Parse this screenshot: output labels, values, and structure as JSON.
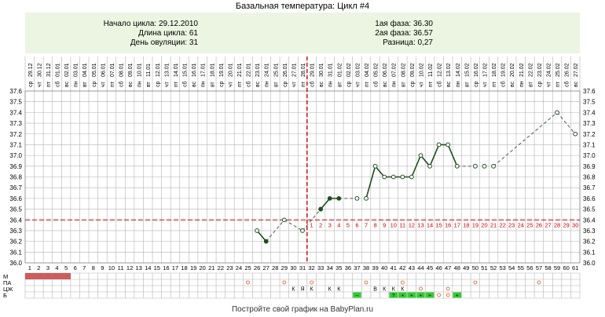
{
  "page": {
    "title": "Базальная температура: Цикл #4",
    "footer": "Постройте свой график на BabyPlan.ru"
  },
  "info": {
    "cycle_start": "Начало цикла: 29.12.2010",
    "cycle_length": "Длина цикла: 61",
    "ovulation_day": "День овуляции: 31",
    "phase1": "1ая фаза: 36.30",
    "phase2": "2ая фаза: 36.57",
    "difference": "Разница: 0,27"
  },
  "colors": {
    "grid": "#b4b4b4",
    "coverline": "#cc0000",
    "ovulation": "#cc0000",
    "series_solid": "#1f4d1f",
    "series_dashed": "#555555",
    "menses": "#cd5c5c",
    "mucus_green": "#33cc33",
    "info_bg": "#ebf5e1",
    "dot_orange": "#e05a2a"
  },
  "chart_data": {
    "type": "line",
    "title": "Базальная температура: Цикл #4",
    "days": [
      1,
      2,
      3,
      4,
      5,
      6,
      7,
      8,
      9,
      10,
      11,
      12,
      13,
      14,
      15,
      16,
      17,
      18,
      19,
      20,
      21,
      22,
      23,
      24,
      25,
      26,
      27,
      28,
      29,
      30,
      31,
      32,
      33,
      34,
      35,
      36,
      37,
      38,
      39,
      40,
      41,
      42,
      43,
      44,
      45,
      46,
      47,
      48,
      49,
      50,
      51,
      52,
      53,
      54,
      55,
      56,
      57,
      58,
      59,
      60,
      61
    ],
    "weekdays": [
      "ср",
      "чт",
      "пт",
      "сб",
      "вс",
      "пн",
      "вт",
      "ср",
      "чт",
      "пт",
      "сб",
      "вс",
      "пн",
      "вт",
      "ср",
      "чт",
      "пт",
      "сб",
      "вс",
      "пн",
      "вт",
      "ср",
      "чт",
      "пт",
      "сб",
      "вс",
      "пн",
      "вт",
      "ср",
      "чт",
      "пт",
      "сб",
      "вс",
      "пн",
      "вт",
      "ср",
      "чт",
      "пт",
      "сб",
      "вс",
      "пн",
      "вт",
      "ср",
      "чт",
      "пт",
      "сб",
      "вс",
      "пн",
      "вт",
      "ср",
      "чт",
      "пт",
      "сб",
      "вс",
      "пн",
      "вт",
      "ср",
      "чт",
      "пт",
      "сб",
      "вс"
    ],
    "dates": [
      "29.12",
      "30.12",
      "31.12",
      "01.01",
      "02.01",
      "03.01",
      "04.01",
      "05.01",
      "06.01",
      "07.01",
      "08.01",
      "09.01",
      "10.01",
      "11.01",
      "12.01",
      "13.01",
      "14.01",
      "15.01",
      "16.01",
      "17.01",
      "18.01",
      "19.01",
      "20.01",
      "21.01",
      "22.01",
      "23.01",
      "24.01",
      "25.01",
      "26.01",
      "27.01",
      "28.01",
      "29.01",
      "30.01",
      "31.01",
      "01.02",
      "02.02",
      "03.02",
      "04.02",
      "05.02",
      "06.02",
      "07.02",
      "08.02",
      "09.02",
      "10.02",
      "11.02",
      "12.02",
      "13.02",
      "14.02",
      "15.02",
      "16.02",
      "17.02",
      "18.02",
      "19.02",
      "20.02",
      "21.02",
      "22.02",
      "23.02",
      "24.02",
      "25.02",
      "26.02",
      "27.02"
    ],
    "ylim": [
      36.0,
      37.6
    ],
    "yticks": [
      36.0,
      36.1,
      36.2,
      36.3,
      36.4,
      36.5,
      36.6,
      36.7,
      36.8,
      36.9,
      37.0,
      37.1,
      37.2,
      37.3,
      37.4,
      37.5,
      37.6
    ],
    "temperatures": [
      null,
      null,
      null,
      null,
      null,
      null,
      null,
      null,
      null,
      null,
      null,
      null,
      null,
      null,
      null,
      null,
      null,
      null,
      null,
      null,
      null,
      null,
      null,
      null,
      null,
      36.3,
      36.2,
      null,
      36.4,
      null,
      36.3,
      null,
      36.5,
      36.6,
      36.6,
      null,
      36.6,
      36.6,
      36.9,
      36.8,
      36.8,
      36.8,
      36.8,
      37.0,
      36.9,
      37.1,
      37.1,
      36.9,
      null,
      36.9,
      36.9,
      36.9,
      null,
      null,
      null,
      null,
      null,
      null,
      37.4,
      null,
      37.2
    ],
    "open_points": [
      26,
      29,
      31,
      37,
      38,
      39,
      40,
      41,
      42,
      43,
      44,
      45,
      46,
      47,
      48,
      50,
      51,
      52,
      59,
      61
    ],
    "solid_segments": [
      [
        26,
        27
      ],
      [
        33,
        35
      ],
      [
        38,
        48
      ]
    ],
    "dashed_segments": [
      [
        27,
        29
      ],
      [
        29,
        31
      ],
      [
        31,
        33
      ],
      [
        35,
        37
      ],
      [
        48,
        50
      ],
      [
        52,
        59
      ],
      [
        59,
        61
      ]
    ],
    "coverline": 36.4,
    "ovulation_day": 31,
    "post_ovulation_labels": [
      "1",
      "2",
      "3",
      "4",
      "5",
      "6",
      "7",
      "8",
      "9",
      "10",
      "11",
      "12",
      "13",
      "14",
      "15",
      "16",
      "17",
      "18",
      "19",
      "20",
      "21",
      "22",
      "23",
      "24",
      "25",
      "26",
      "27",
      "28",
      "29",
      "30"
    ],
    "moon_days": [
      21,
      50
    ],
    "rows": {
      "labels": [
        "М",
        "ПА",
        "ЦЖ",
        "Б"
      ],
      "menses_days": [
        1,
        2,
        3,
        4,
        5
      ],
      "pa_circle_days": [
        25,
        29,
        32,
        38,
        42,
        50,
        57
      ],
      "cervical_mucus": [
        {
          "day": 30,
          "code": "К"
        },
        {
          "day": 31,
          "code": "Я"
        },
        {
          "day": 32,
          "code": "К"
        },
        {
          "day": 34,
          "code": "К"
        },
        {
          "day": 35,
          "code": "К"
        },
        {
          "day": 39,
          "code": "В"
        },
        {
          "day": 40,
          "code": "К"
        },
        {
          "day": 41,
          "code": "К"
        },
        {
          "day": 42,
          "code": "К"
        }
      ],
      "cm_circle_days": [
        44,
        47
      ],
      "b_green_days": [
        37,
        41,
        42,
        43,
        44,
        45,
        48
      ],
      "b_labels": [
        {
          "day": 37,
          "text": "–"
        },
        {
          "day": 41,
          "text": "?"
        },
        {
          "day": 42,
          "text": "+"
        },
        {
          "day": 43,
          "text": "+"
        },
        {
          "day": 44,
          "text": "+"
        },
        {
          "day": 45,
          "text": "+"
        },
        {
          "day": 48,
          "text": "+"
        }
      ],
      "b_circle_days": [
        46,
        47
      ]
    }
  }
}
